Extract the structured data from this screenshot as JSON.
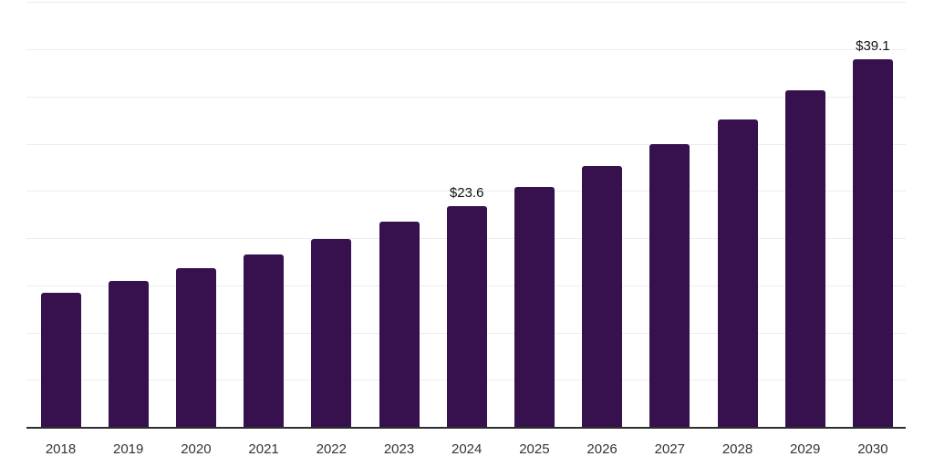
{
  "chart_data": {
    "type": "bar",
    "title": "",
    "xlabel": "",
    "ylabel": "",
    "categories": [
      "2018",
      "2019",
      "2020",
      "2021",
      "2022",
      "2023",
      "2024",
      "2025",
      "2026",
      "2027",
      "2028",
      "2029",
      "2030"
    ],
    "values": [
      14.4,
      15.7,
      17.0,
      18.5,
      20.1,
      21.9,
      23.6,
      25.6,
      27.8,
      30.1,
      32.8,
      35.8,
      39.1
    ],
    "annotations": [
      {
        "category": "2024",
        "label": "$23.6"
      },
      {
        "category": "2030",
        "label": "$39.1"
      }
    ],
    "ylim": [
      0,
      45
    ],
    "grid": {
      "show": true,
      "step": 5,
      "orientation": "horizontal"
    },
    "legend": {
      "show": false
    },
    "y_tick_labels_visible": false
  },
  "colors": {
    "bar": "#36114E",
    "gridline": "#EDEDED",
    "axis": "#2E2E2E",
    "tick_label": "#333333",
    "data_label": "#111111",
    "background": "#FFFFFF"
  }
}
